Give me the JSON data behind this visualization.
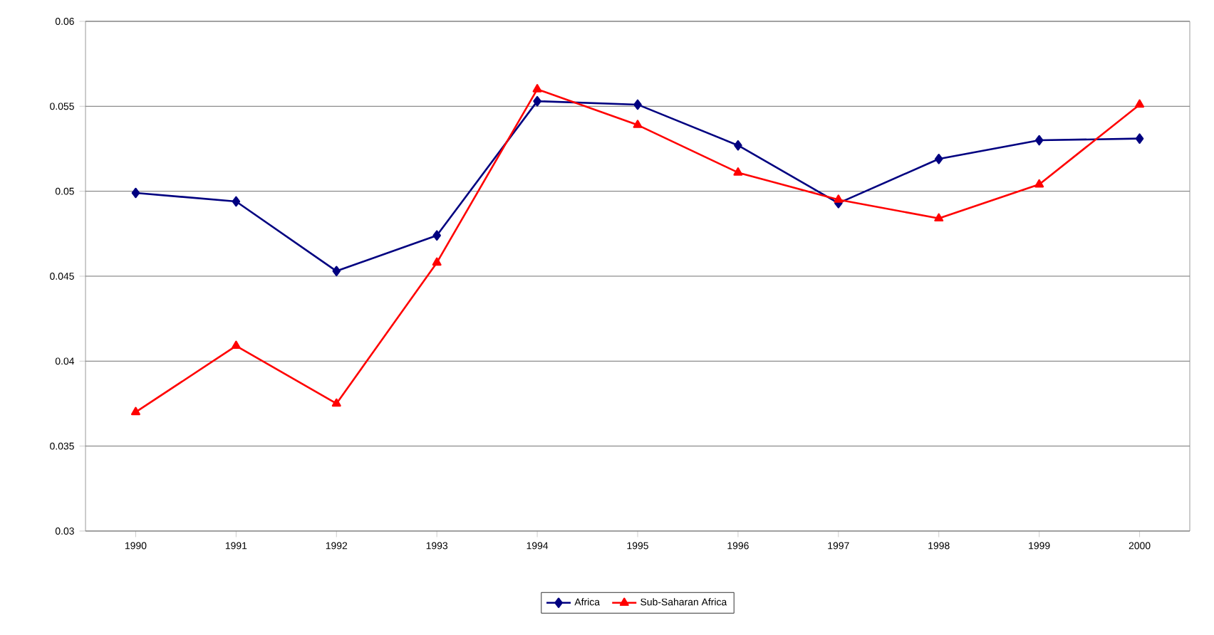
{
  "chart_data": {
    "type": "line",
    "categories": [
      "1990",
      "1991",
      "1992",
      "1993",
      "1994",
      "1995",
      "1996",
      "1997",
      "1998",
      "1999",
      "2000"
    ],
    "series": [
      {
        "name": "Africa",
        "color": "#000080",
        "marker": "diamond",
        "values": [
          0.0499,
          0.0494,
          0.0453,
          0.0474,
          0.0553,
          0.0551,
          0.0527,
          0.0493,
          0.0519,
          0.053,
          0.0531
        ]
      },
      {
        "name": "Sub-Saharan Africa",
        "color": "#ff0000",
        "marker": "triangle",
        "values": [
          0.037,
          0.0409,
          0.0375,
          0.0458,
          0.056,
          0.0539,
          0.0511,
          0.0495,
          0.0484,
          0.0504,
          0.0551
        ]
      }
    ],
    "ylim": [
      0.03,
      0.06
    ],
    "yticks": [
      0.03,
      0.035,
      0.04,
      0.045,
      0.05,
      0.055,
      0.06
    ],
    "grid": "y",
    "legend": "bottom",
    "line_style": "solid"
  }
}
